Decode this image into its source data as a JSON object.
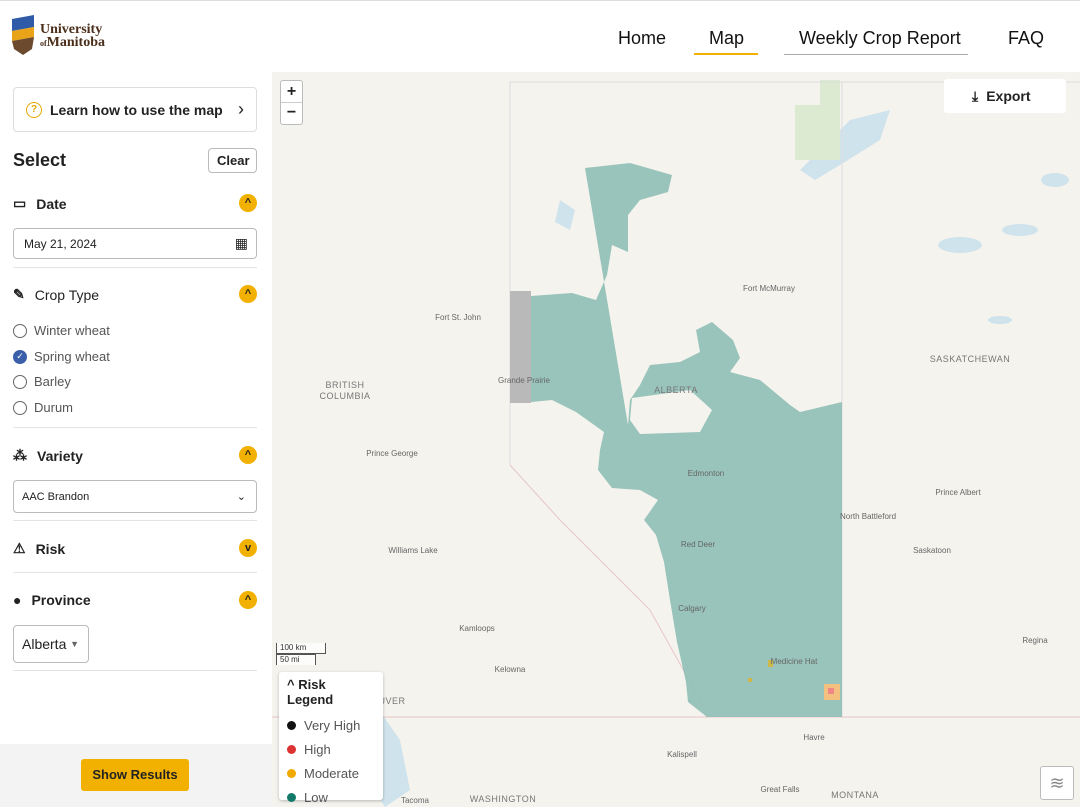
{
  "header": {
    "logo": {
      "line1": "University",
      "small": "of",
      "line2": "Manitoba"
    },
    "nav": [
      "Home",
      "Map",
      "Weekly Crop Report",
      "FAQ"
    ]
  },
  "sidebar": {
    "help_link": "Learn how to use the map",
    "select_title": "Select",
    "clear_button": "Clear",
    "date": {
      "label": "Date",
      "value": "May 21, 2024"
    },
    "crop_type": {
      "label": "Crop Type",
      "options": [
        "Winter wheat",
        "Spring wheat",
        "Barley",
        "Durum"
      ]
    },
    "variety": {
      "label": "Variety",
      "value": "AAC Brandon"
    },
    "risk": {
      "label": "Risk"
    },
    "province": {
      "label": "Province",
      "value": "Alberta"
    },
    "show_results": "Show Results"
  },
  "map": {
    "zoom_in": "+",
    "zoom_out": "−",
    "export": "Export",
    "scale": [
      "100 km",
      "50 mi"
    ],
    "legend": {
      "title": "Risk Legend",
      "items": [
        "Very High",
        "High",
        "Moderate",
        "Low"
      ]
    },
    "places": [
      "Fort St. John",
      "Grande Prairie",
      "BRITISH",
      "COLUMBIA",
      "ALBERTA",
      "Fort McMurray",
      "SASKATCHEWAN",
      "Prince George",
      "Edmonton",
      "Prince Albert",
      "North Battleford",
      "Red Deer",
      "Williams Lake",
      "Saskatoon",
      "Calgary",
      "Kamloops",
      "Regina",
      "Kelowna",
      "Medicine Hat",
      "Havre",
      "Kalispell",
      "Great Falls",
      "MONTANA",
      "WASHINGTON",
      "Tacoma",
      "UVER"
    ]
  }
}
